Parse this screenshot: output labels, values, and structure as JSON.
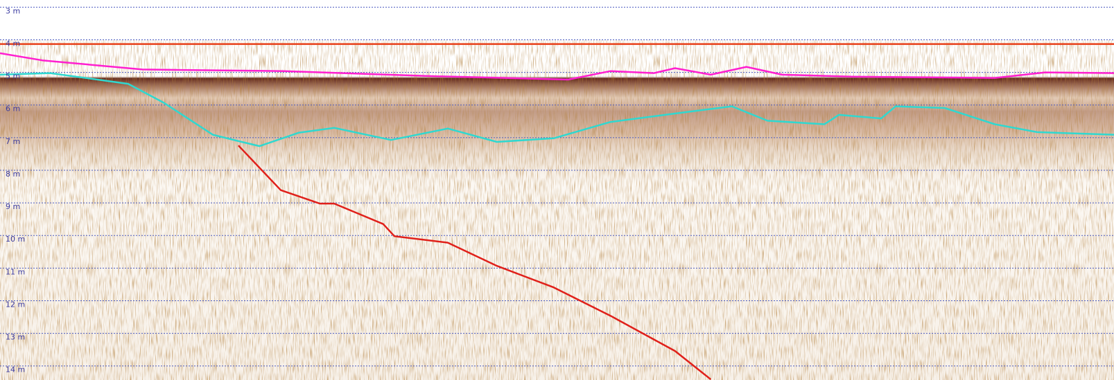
{
  "chart_data": {
    "type": "line",
    "y_inverted": true,
    "xlim": [
      0,
      100
    ],
    "ylim": [
      2.78,
      14.43
    ],
    "yticks": [
      {
        "value": 3,
        "label": "3 m"
      },
      {
        "value": 4,
        "label": "4 m"
      },
      {
        "value": 5,
        "label": "5 m"
      },
      {
        "value": 6,
        "label": "6 m"
      },
      {
        "value": 7,
        "label": "7 m"
      },
      {
        "value": 8,
        "label": "8 m"
      },
      {
        "value": 9,
        "label": "9 m"
      },
      {
        "value": 10,
        "label": "10 m"
      },
      {
        "value": 11,
        "label": "11 m"
      },
      {
        "value": 12,
        "label": "12 m"
      },
      {
        "value": 13,
        "label": "13 m"
      },
      {
        "value": 14,
        "label": "14 m"
      }
    ],
    "grid": true,
    "series": [
      {
        "color": "#e8401a",
        "x": [
          0,
          100
        ],
        "values": [
          4.13,
          4.13
        ]
      },
      {
        "color": "#ff1fd0",
        "x": [
          0,
          3.8,
          12.8,
          25.5,
          38.3,
          51,
          54.8,
          58.7,
          60.6,
          63.8,
          67,
          70.2,
          76.5,
          89.3,
          93.8,
          100
        ],
        "values": [
          4.41,
          4.63,
          4.91,
          4.96,
          5.11,
          5.22,
          4.96,
          5.02,
          4.87,
          5.07,
          4.83,
          5.07,
          5.13,
          5.17,
          5.0,
          5.02
        ]
      },
      {
        "color": "#2fd8d0",
        "x": [
          0,
          4.5,
          11.5,
          14.7,
          19.1,
          21.7,
          23.3,
          26.8,
          30,
          35.1,
          40.2,
          44.6,
          49.7,
          54.8,
          60.6,
          65.7,
          68.9,
          74,
          75.3,
          79.1,
          80.4,
          84.8,
          89.3,
          93.1,
          100
        ],
        "values": [
          5.07,
          5.02,
          5.35,
          5.93,
          6.91,
          7.13,
          7.26,
          6.85,
          6.7,
          7.07,
          6.72,
          7.13,
          7.02,
          6.52,
          6.26,
          6.04,
          6.48,
          6.59,
          6.3,
          6.41,
          6.04,
          6.09,
          6.59,
          6.83,
          6.91
        ]
      },
      {
        "color": "#e0201a",
        "x": [
          21.4,
          25.2,
          28.7,
          30,
          34.4,
          35.4,
          40.2,
          44.6,
          49.7,
          54.8,
          60.6,
          63.8
        ],
        "values": [
          7.24,
          8.61,
          9.02,
          9.02,
          9.65,
          10.02,
          10.22,
          10.93,
          11.59,
          12.46,
          13.54,
          14.41
        ]
      }
    ]
  }
}
